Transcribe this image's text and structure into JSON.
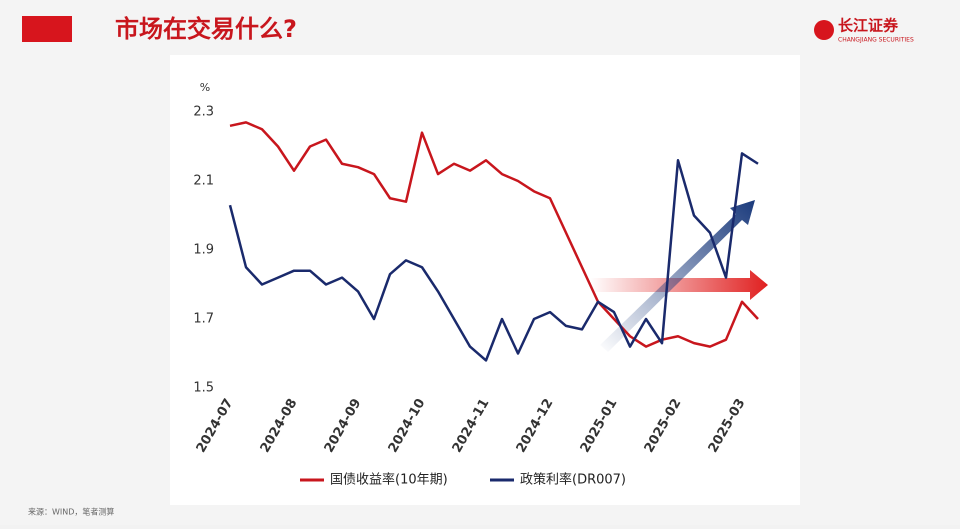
{
  "header": {
    "title": "市场在交易什么?",
    "logo": "长江证券",
    "logo_sub": "CHANGJIANG SECURITIES"
  },
  "footer": {
    "source": "来源：WIND，笔者测算"
  },
  "chart_data": {
    "type": "line",
    "y_unit": "%",
    "xticks": [
      "2024-07",
      "2024-08",
      "2024-09",
      "2024-10",
      "2024-11",
      "2024-12",
      "2025-01",
      "2025-02",
      "2025-03"
    ],
    "x": [
      "2024-07",
      "2024-07",
      "2024-07",
      "2024-07",
      "2024-08",
      "2024-08",
      "2024-08",
      "2024-08",
      "2024-09",
      "2024-09",
      "2024-09",
      "2024-09",
      "2024-10",
      "2024-10",
      "2024-10",
      "2024-10",
      "2024-11",
      "2024-11",
      "2024-11",
      "2024-11",
      "2024-12",
      "2024-12",
      "2024-12",
      "2024-12",
      "2025-01",
      "2025-01",
      "2025-01",
      "2025-01",
      "2025-02",
      "2025-02",
      "2025-02",
      "2025-02",
      "2025-03",
      "2025-03"
    ],
    "series": [
      {
        "name": "国债收益率(10年期)",
        "color": "#c8161d",
        "values": [
          2.26,
          2.27,
          2.25,
          2.2,
          2.13,
          2.2,
          2.22,
          2.15,
          2.14,
          2.12,
          2.05,
          2.04,
          2.24,
          2.12,
          2.15,
          2.13,
          2.16,
          2.12,
          2.1,
          2.07,
          2.05,
          1.95,
          1.85,
          1.75,
          1.7,
          1.65,
          1.62,
          1.64,
          1.65,
          1.63,
          1.62,
          1.64,
          1.75,
          1.7
        ]
      },
      {
        "name": "政策利率(DR007)",
        "color": "#1a2a6c",
        "values": [
          2.03,
          1.85,
          1.8,
          1.82,
          1.84,
          1.84,
          1.8,
          1.82,
          1.78,
          1.7,
          1.83,
          1.87,
          1.85,
          1.78,
          1.7,
          1.62,
          1.58,
          1.7,
          1.6,
          1.7,
          1.72,
          1.68,
          1.67,
          1.75,
          1.72,
          1.62,
          1.7,
          1.63,
          2.16,
          2.0,
          1.95,
          1.82,
          2.18,
          2.15
        ]
      }
    ],
    "ylim": [
      1.5,
      2.3
    ],
    "yticks": [
      1.5,
      1.7,
      1.9,
      2.1,
      2.3
    ]
  }
}
